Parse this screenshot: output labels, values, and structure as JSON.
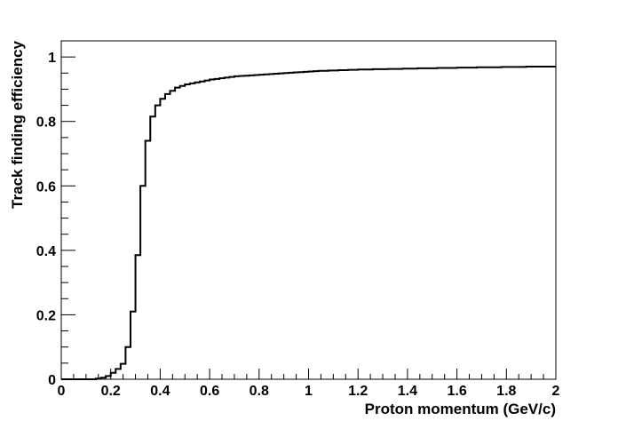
{
  "chart_data": {
    "type": "line",
    "style": "step-histogram",
    "title": "",
    "xlabel": "Proton momentum (GeV/c)",
    "ylabel": "Track finding efficiency",
    "xlim": [
      0,
      2
    ],
    "ylim": [
      0,
      1.05
    ],
    "xticks": [
      0,
      0.2,
      0.4,
      0.6,
      0.8,
      1,
      1.2,
      1.4,
      1.6,
      1.8,
      2
    ],
    "xtick_labels": [
      "0",
      "0.2",
      "0.4",
      "0.6",
      "0.8",
      "1",
      "1.2",
      "1.4",
      "1.6",
      "1.8",
      "2"
    ],
    "yticks": [
      0,
      0.2,
      0.4,
      0.6,
      0.8,
      1
    ],
    "ytick_labels": [
      "0",
      "0.2",
      "0.4",
      "0.6",
      "0.8",
      "1"
    ],
    "grid": false,
    "legend": "none",
    "line_color": "#000000",
    "bin_width": 0.02,
    "series": [
      {
        "values": [
          0,
          0,
          0,
          0,
          0,
          0,
          0,
          0.002,
          0.005,
          0.01,
          0.02,
          0.032,
          0.048,
          0.1,
          0.21,
          0.385,
          0.6,
          0.74,
          0.815,
          0.85,
          0.87,
          0.885,
          0.895,
          0.905,
          0.91,
          0.915,
          0.918,
          0.921,
          0.924,
          0.927,
          0.93,
          0.932,
          0.934,
          0.936,
          0.938,
          0.94,
          0.941,
          0.942,
          0.943,
          0.944,
          0.945,
          0.946,
          0.947,
          0.948,
          0.949,
          0.95,
          0.951,
          0.952,
          0.953,
          0.954,
          0.955,
          0.956,
          0.957,
          0.957,
          0.958,
          0.958,
          0.959,
          0.959,
          0.96,
          0.96,
          0.961,
          0.961,
          0.961,
          0.962,
          0.962,
          0.962,
          0.963,
          0.963,
          0.963,
          0.964,
          0.964,
          0.964,
          0.965,
          0.965,
          0.965,
          0.965,
          0.966,
          0.966,
          0.966,
          0.966,
          0.967,
          0.967,
          0.967,
          0.967,
          0.968,
          0.968,
          0.968,
          0.968,
          0.968,
          0.969,
          0.969,
          0.969,
          0.969,
          0.969,
          0.97,
          0.97,
          0.97,
          0.97,
          0.97,
          0.97
        ]
      }
    ]
  }
}
